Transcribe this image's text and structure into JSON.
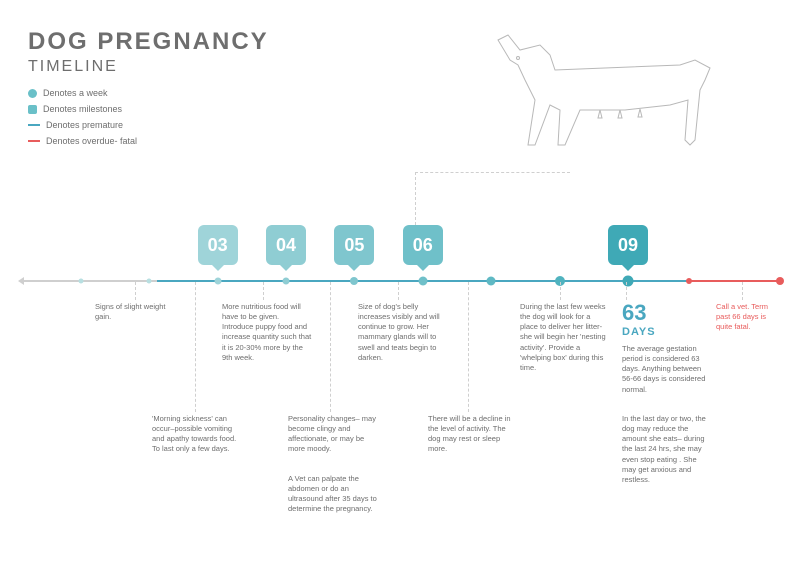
{
  "title": "DOG PREGNANCY",
  "subtitle": "TIMELINE",
  "legend": {
    "week": "Denotes a week",
    "milestone": "Denotes milestones",
    "premature": "Denotes premature",
    "overdue": "Denotes overdue- fatal"
  },
  "colors": {
    "teal_light": "#9fd4d9",
    "teal": "#6ac0c8",
    "teal_dark": "#4aa7c0",
    "grey": "#cfcfcf",
    "grey_text": "#6e6e6e",
    "red": "#e85c5c",
    "blue_line": "#4aa7c0"
  },
  "timeline": {
    "total_weeks": 10,
    "grey_pct": 18,
    "blue_start_pct": 18,
    "blue_end_pct": 88,
    "red_start_pct": 88,
    "red_end_pct": 100,
    "weeks": [
      {
        "w": 1,
        "x": 8,
        "size": 5,
        "color": "#b8dfe1"
      },
      {
        "w": 2,
        "x": 17,
        "size": 5,
        "color": "#b8dfe1"
      },
      {
        "w": 3,
        "x": 26,
        "size": 7,
        "color": "#9fd4d9"
      },
      {
        "w": 4,
        "x": 35,
        "size": 7,
        "color": "#8fcdd3"
      },
      {
        "w": 5,
        "x": 44,
        "size": 8,
        "color": "#7fc6ce"
      },
      {
        "w": 6,
        "x": 53,
        "size": 9,
        "color": "#6fc0c9"
      },
      {
        "w": 7,
        "x": 62,
        "size": 9,
        "color": "#5fb9c4"
      },
      {
        "w": 8,
        "x": 71,
        "size": 10,
        "color": "#50b3bf"
      },
      {
        "w": 9,
        "x": 80,
        "size": 11,
        "color": "#3fa9b6"
      },
      {
        "w": 10,
        "x": 88,
        "size": 6,
        "color": "#e85c5c"
      }
    ]
  },
  "milestones": [
    {
      "label": "03",
      "x": 26,
      "color": "#9fd4d9"
    },
    {
      "label": "04",
      "x": 35,
      "color": "#8fcdd3"
    },
    {
      "label": "05",
      "x": 44,
      "color": "#7fc6ce"
    },
    {
      "label": "06",
      "x": 53,
      "color": "#6fc0c9"
    },
    {
      "label": "09",
      "x": 80,
      "color": "#3fa9b6"
    }
  ],
  "annots": {
    "a1": "Signs of slight weight gain.",
    "a2": "'Morning sickness' can occur–possible vomiting and apathy towards food. To last only a few days.",
    "a3": "More nutritious food will have to be given. Introduce puppy food and increase quantity such that it is 20-30% more by the 9th week.",
    "a4": "Personality changes– may become clingy and affectionate, or may be more moody.",
    "a5": "A Vet can palpate the abdomen or do an ultrasound after 35 days to determine the pregnancy.",
    "a6": "Size of dog's belly increases visibly and will continue to grow. Her mammary glands will to swell and teats begin to darken.",
    "a7": "There will be a decline in the level of activity. The dog may rest or sleep more.",
    "a8": "During the last few weeks the dog will look for a place to deliver her litter- she will begin her 'nesting activity'. Provide a 'whelping box' during this time.",
    "a9": "In the last day or two, the dog may reduce the amount she eats– during the last 24 hrs, she may even stop eating . She may get anxious and restless.",
    "a10": "The average gestation period is considered 63 days. Anything between 56-66 days is considered normal.",
    "a11": "Call a vet. Term past 66 days is quite fatal.",
    "days_num": "63",
    "days_label": "DAYS"
  }
}
